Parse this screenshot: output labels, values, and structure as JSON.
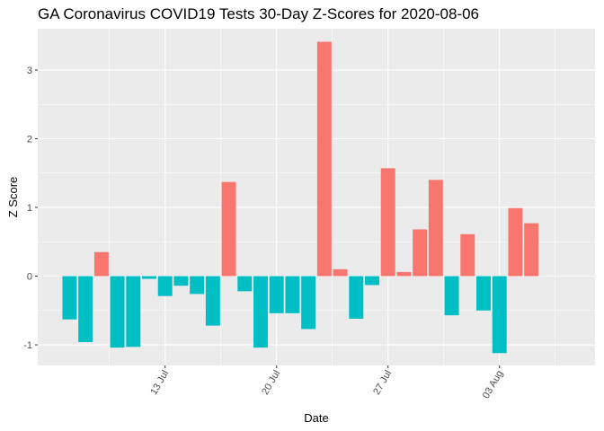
{
  "chart_data": {
    "type": "bar",
    "title": "GA Coronavirus COVID19 Tests 30-Day Z-Scores for 2020-08-06",
    "xlabel": "Date",
    "ylabel": "Z Score",
    "x_ticks": [
      {
        "label": "13 Jul",
        "date": "2020-07-13"
      },
      {
        "label": "20 Jul",
        "date": "2020-07-20"
      },
      {
        "label": "27 Jul",
        "date": "2020-07-27"
      },
      {
        "label": "03 Aug",
        "date": "2020-08-03"
      }
    ],
    "y_ticks": [
      -1,
      0,
      1,
      2,
      3
    ],
    "ylim": [
      -1.3,
      3.6
    ],
    "xlim": [
      "2020-07-05",
      "2020-08-09"
    ],
    "grid": true,
    "colors": {
      "positive": "#f8766d",
      "negative": "#00bfc4",
      "panel": "#ebebeb",
      "grid": "#ffffff"
    },
    "bars": [
      {
        "date": "2020-07-07",
        "value": -0.63
      },
      {
        "date": "2020-07-08",
        "value": -0.96
      },
      {
        "date": "2020-07-09",
        "value": 0.35
      },
      {
        "date": "2020-07-10",
        "value": -1.04
      },
      {
        "date": "2020-07-11",
        "value": -1.03
      },
      {
        "date": "2020-07-12",
        "value": -0.04
      },
      {
        "date": "2020-07-13",
        "value": -0.29
      },
      {
        "date": "2020-07-14",
        "value": -0.14
      },
      {
        "date": "2020-07-15",
        "value": -0.26
      },
      {
        "date": "2020-07-16",
        "value": -0.72
      },
      {
        "date": "2020-07-17",
        "value": 1.37
      },
      {
        "date": "2020-07-18",
        "value": -0.22
      },
      {
        "date": "2020-07-19",
        "value": -1.04
      },
      {
        "date": "2020-07-20",
        "value": -0.54
      },
      {
        "date": "2020-07-21",
        "value": -0.54
      },
      {
        "date": "2020-07-22",
        "value": -0.77
      },
      {
        "date": "2020-07-23",
        "value": 3.41
      },
      {
        "date": "2020-07-24",
        "value": 0.1
      },
      {
        "date": "2020-07-25",
        "value": -0.62
      },
      {
        "date": "2020-07-26",
        "value": -0.13
      },
      {
        "date": "2020-07-27",
        "value": 1.57
      },
      {
        "date": "2020-07-28",
        "value": 0.06
      },
      {
        "date": "2020-07-29",
        "value": 0.68
      },
      {
        "date": "2020-07-30",
        "value": 1.4
      },
      {
        "date": "2020-07-31",
        "value": -0.57
      },
      {
        "date": "2020-08-01",
        "value": 0.61
      },
      {
        "date": "2020-08-02",
        "value": -0.5
      },
      {
        "date": "2020-08-03",
        "value": -1.12
      },
      {
        "date": "2020-08-04",
        "value": 0.99
      },
      {
        "date": "2020-08-05",
        "value": 0.77
      }
    ]
  }
}
